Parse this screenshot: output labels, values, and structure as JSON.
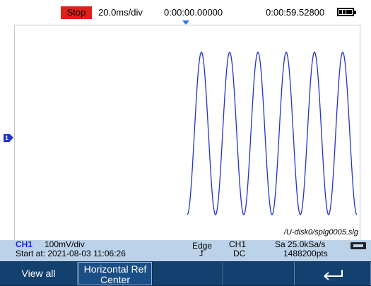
{
  "status_bar": {
    "run_state": "Stop",
    "timebase": "20.0ms/div",
    "trigger_delay": "0:00:00.00000",
    "sample_time": "0:00:59.52800",
    "battery_icon": "battery-full-icon"
  },
  "waveform": {
    "channel_marker": "1",
    "file_path": "/U-disk0/splg0005.slg",
    "color": "#2233cc"
  },
  "info": {
    "channel": "CH1",
    "vertical_scale": "100mV/div",
    "start_at": "Start at: 2021-08-03 11:06:26",
    "trigger_type": "Edge",
    "trigger_slope": "⮥",
    "trigger_source": "CH1",
    "coupling": "DC",
    "sample_rate": "Sa 25.0kSa/s",
    "points": "1488200pts",
    "usb_icon": "usb-icon"
  },
  "softkeys": {
    "view_all": "View all",
    "horizontal_ref_line1": "Horizontal Ref",
    "horizontal_ref_line2": "Center",
    "key3": "",
    "key4": "",
    "back_icon": "back-arrow-icon"
  },
  "colors": {
    "stop": "#e0201b",
    "info_bar": "#bcd2e8",
    "softkey_bar": "#0c2f55",
    "channel": "#1a1aff"
  }
}
